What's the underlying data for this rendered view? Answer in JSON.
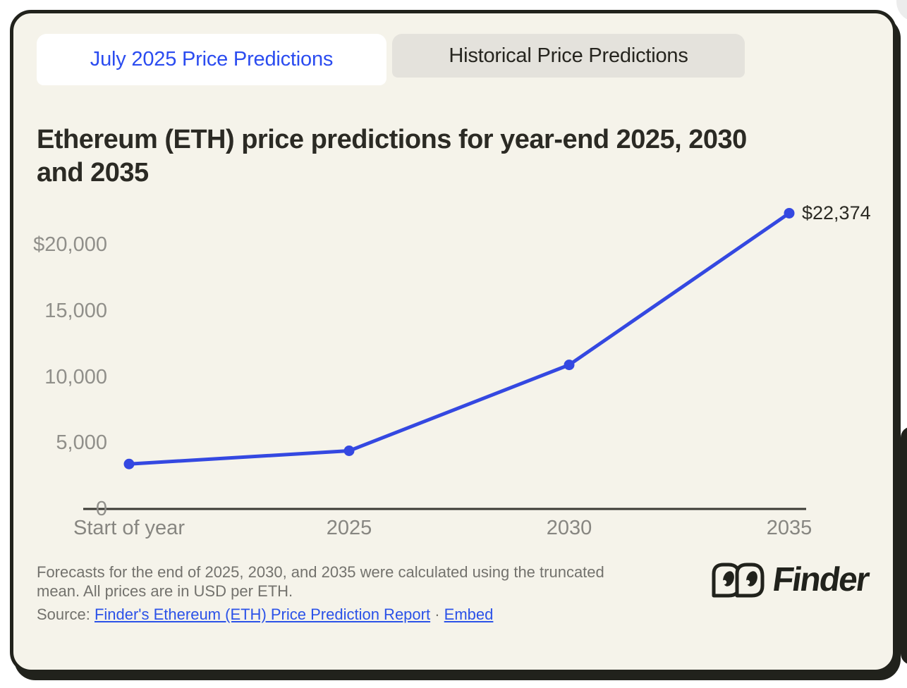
{
  "tabs": {
    "active": "July 2025 Price Predictions",
    "inactive": "Historical Price Predictions"
  },
  "title": "Ethereum (ETH) price predictions for year-end 2025, 2030\nand 2035",
  "chart_data": {
    "type": "line",
    "categories": [
      "Start of year",
      "2025",
      "2030",
      "2035"
    ],
    "values": [
      3400,
      4400,
      10900,
      22374
    ],
    "labeled_point_index": 3,
    "point_label": "$22,374",
    "y_ticks": [
      {
        "value": 20000,
        "label": "$20,000"
      },
      {
        "value": 15000,
        "label": "15,000"
      },
      {
        "value": 10000,
        "label": "10,000"
      },
      {
        "value": 5000,
        "label": "5,000"
      },
      {
        "value": 0,
        "label": "0"
      }
    ],
    "ylim": [
      0,
      23000
    ],
    "xlabel": "",
    "ylabel": "",
    "grid": false,
    "legend": false,
    "line_color": "#3448e1"
  },
  "footer": {
    "note": "Forecasts for the end of 2025, 2030, and 2035 were calculated using the truncated\nmean. All prices are in USD per ETH.",
    "source_label": "Source:",
    "source_link": "Finder's Ethereum (ETH) Price Prediction Report",
    "separator": "·",
    "embed_link": "Embed",
    "brand": "Finder"
  },
  "colors": {
    "card_background": "#f5f3ea",
    "border_dark": "#21221c",
    "active_tab_text": "#2b4cf0",
    "inactive_tab_bg": "#e4e2dc",
    "line_blue": "#3448e1",
    "link_blue": "#2b52e8",
    "tick_gray": "#908f8a",
    "text_dark": "#2b2a24"
  }
}
